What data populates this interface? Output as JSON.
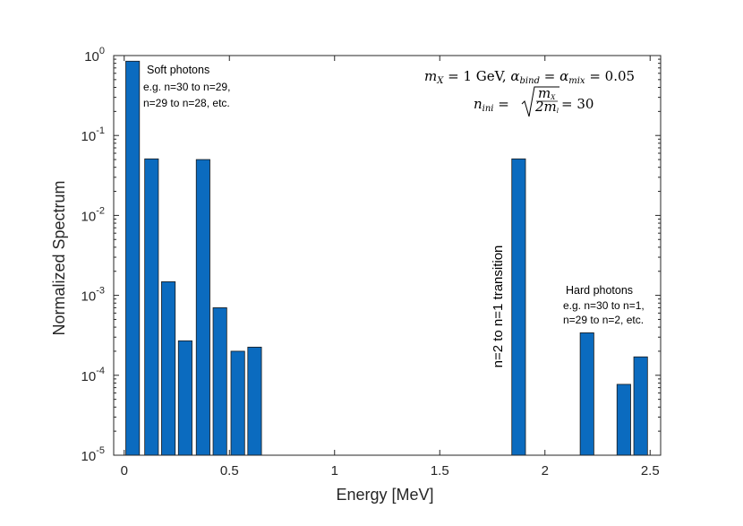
{
  "chart_data": {
    "type": "bar",
    "yscale": "log",
    "xlabel": "Energy [MeV]",
    "ylabel": "Normalized Spectrum",
    "xlim": [
      -0.05,
      2.55
    ],
    "ylim": [
      1e-05,
      1
    ],
    "bar_width": 0.065,
    "bar_color": "#0b6bbf",
    "x_ticks": [
      0,
      0.5,
      1,
      1.5,
      2,
      2.5
    ],
    "x_tick_labels": [
      "0",
      "0.5",
      "1",
      "1.5",
      "2",
      "2.5"
    ],
    "y_ticks": [
      {
        "value": 1e-05,
        "base": "10",
        "exp": "-5"
      },
      {
        "value": 0.0001,
        "base": "10",
        "exp": "-4"
      },
      {
        "value": 0.001,
        "base": "10",
        "exp": "-3"
      },
      {
        "value": 0.01,
        "base": "10",
        "exp": "-2"
      },
      {
        "value": 0.1,
        "base": "10",
        "exp": "-1"
      },
      {
        "value": 1,
        "base": "10",
        "exp": "0"
      }
    ],
    "bars": [
      {
        "x": 0.04,
        "y": 0.85
      },
      {
        "x": 0.13,
        "y": 0.051
      },
      {
        "x": 0.21,
        "y": 0.00148
      },
      {
        "x": 0.29,
        "y": 0.00027
      },
      {
        "x": 0.375,
        "y": 0.05
      },
      {
        "x": 0.455,
        "y": 0.0007
      },
      {
        "x": 0.54,
        "y": 0.0002
      },
      {
        "x": 0.62,
        "y": 0.000225
      },
      {
        "x": 1.875,
        "y": 0.051
      },
      {
        "x": 2.2,
        "y": 0.00034
      },
      {
        "x": 2.375,
        "y": 7.7e-05
      },
      {
        "x": 2.455,
        "y": 0.00017
      }
    ],
    "annotations": {
      "soft_title": "Soft photons",
      "soft_line1": "e.g. n=30 to n=29,",
      "soft_line2": "n=29 to n=28, etc.",
      "hard_title": "Hard photons",
      "hard_line1": "e.g. n=30 to n=1,",
      "hard_line2": "n=29 to n=2, etc.",
      "transition": "n=2 to n=1 transition"
    },
    "formula": {
      "line1_lhs": "m",
      "line1_lhs_sub": "X",
      "line1_eq": " = 1 GeV, ",
      "alpha": "α",
      "alpha_bind_sub": "bind",
      "alpha_mix_sub": "mix",
      "equals": " = ",
      "alpha_value": " = 0.05",
      "line2_lhs": "n",
      "line2_sub": "ini",
      "frac_num": "m",
      "frac_num_sub": "X",
      "frac_den": "2m",
      "frac_den_sub": "l",
      "line2_rhs": " = 30"
    }
  }
}
